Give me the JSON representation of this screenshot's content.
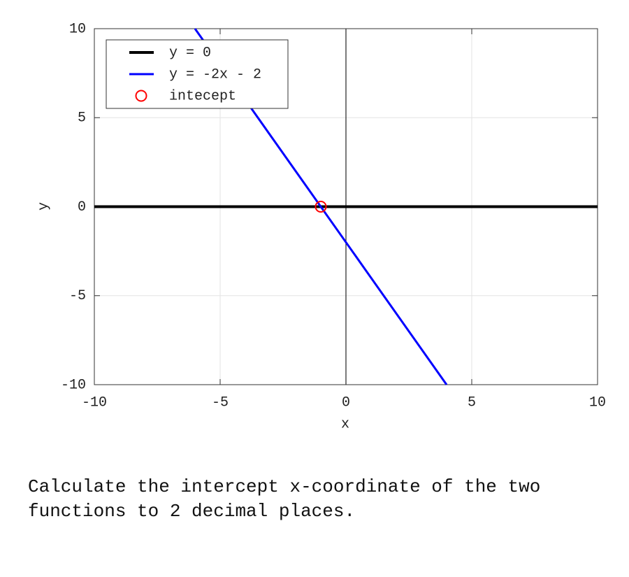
{
  "chart_data": {
    "type": "line",
    "xlabel": "x",
    "ylabel": "y",
    "xlim": [
      -10,
      10
    ],
    "ylim": [
      -10,
      10
    ],
    "xticks": [
      -10,
      -5,
      0,
      5,
      10
    ],
    "yticks": [
      -10,
      -5,
      0,
      5,
      10
    ],
    "grid": true,
    "legend": "upper left",
    "series": [
      {
        "name": "y = 0",
        "color": "#000000",
        "x": [
          -10,
          10
        ],
        "values": [
          0,
          0
        ]
      },
      {
        "name": "y = -2x - 2",
        "color": "#0000ff",
        "x": [
          -6,
          4
        ],
        "values": [
          10,
          -10
        ]
      },
      {
        "name": "intecept",
        "color": "#ff0000",
        "marker": "circle",
        "x": [
          -1
        ],
        "values": [
          0
        ]
      }
    ]
  },
  "question": "Calculate the intercept x-coordinate of the two functions to 2 decimal places."
}
